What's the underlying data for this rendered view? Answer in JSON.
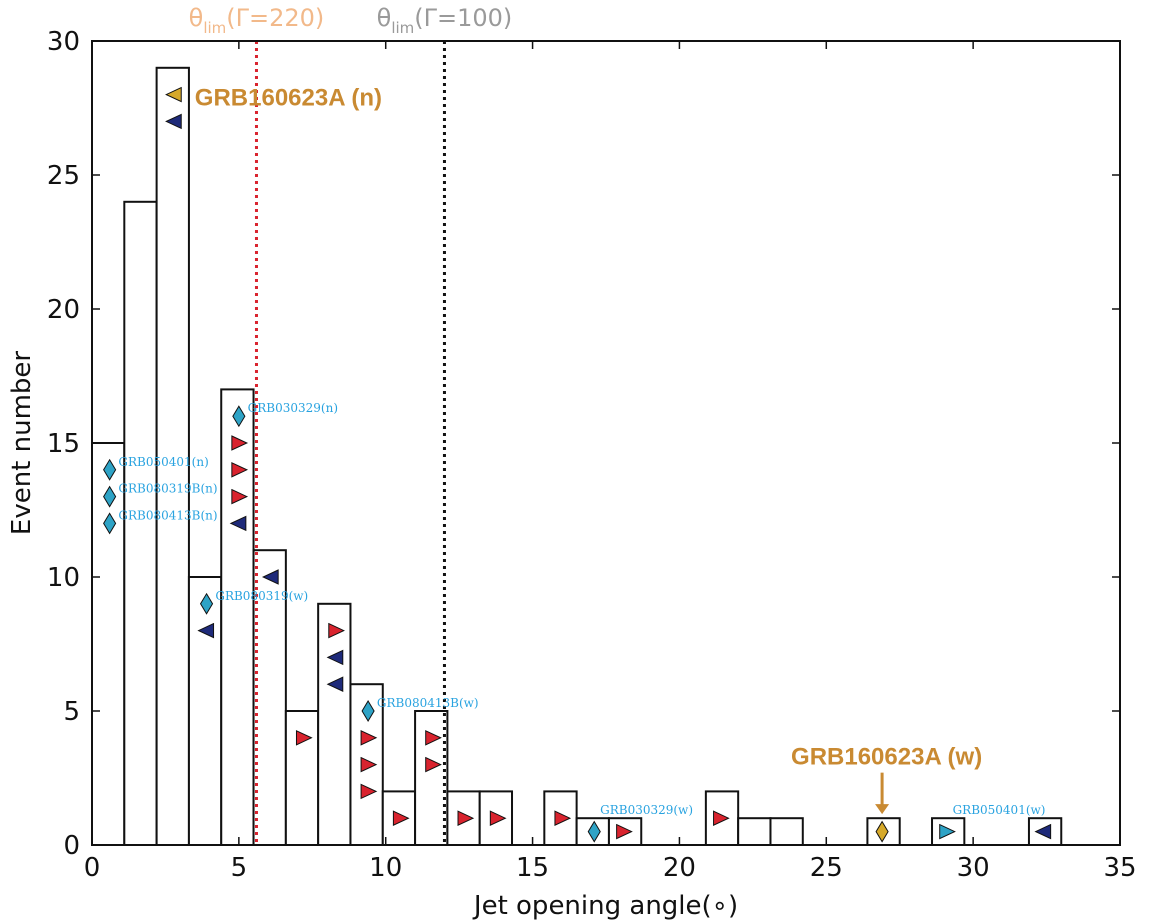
{
  "chart_data": {
    "type": "bar",
    "xlabel": "Jet opening angle(∘)",
    "ylabel": "Event number",
    "xlim": [
      0,
      35
    ],
    "ylim": [
      0,
      30
    ],
    "xticks": [
      0,
      5,
      10,
      15,
      20,
      25,
      30,
      35
    ],
    "yticks": [
      0,
      5,
      10,
      15,
      20,
      25,
      30
    ],
    "grid": false,
    "bins": [
      {
        "x0": 0.0,
        "x1": 1.1,
        "count": 15
      },
      {
        "x0": 1.1,
        "x1": 2.2,
        "count": 24
      },
      {
        "x0": 2.2,
        "x1": 3.3,
        "count": 29
      },
      {
        "x0": 3.3,
        "x1": 4.4,
        "count": 10
      },
      {
        "x0": 4.4,
        "x1": 5.5,
        "count": 17
      },
      {
        "x0": 5.5,
        "x1": 6.6,
        "count": 11
      },
      {
        "x0": 6.6,
        "x1": 7.7,
        "count": 5
      },
      {
        "x0": 7.7,
        "x1": 8.8,
        "count": 9
      },
      {
        "x0": 8.8,
        "x1": 9.9,
        "count": 6
      },
      {
        "x0": 9.9,
        "x1": 11.0,
        "count": 2
      },
      {
        "x0": 11.0,
        "x1": 12.1,
        "count": 5
      },
      {
        "x0": 12.1,
        "x1": 13.2,
        "count": 2
      },
      {
        "x0": 13.2,
        "x1": 14.3,
        "count": 2
      },
      {
        "x0": 15.4,
        "x1": 16.5,
        "count": 2
      },
      {
        "x0": 16.5,
        "x1": 17.6,
        "count": 1
      },
      {
        "x0": 17.6,
        "x1": 18.7,
        "count": 1
      },
      {
        "x0": 20.9,
        "x1": 22.0,
        "count": 2
      },
      {
        "x0": 22.0,
        "x1": 23.1,
        "count": 1
      },
      {
        "x0": 23.1,
        "x1": 24.2,
        "count": 1
      },
      {
        "x0": 26.4,
        "x1": 27.5,
        "count": 1
      },
      {
        "x0": 28.6,
        "x1": 29.7,
        "count": 1
      },
      {
        "x0": 31.9,
        "x1": 33.0,
        "count": 1
      }
    ],
    "vlines": [
      {
        "x": 5.6,
        "label_theta": "θ",
        "label_sub": "lim",
        "label_rest": "(Γ=220)",
        "color": "#d9232e",
        "label_color": "#f2b98a"
      },
      {
        "x": 12.0,
        "label_theta": "θ",
        "label_sub": "lim",
        "label_rest": "(Γ=100)",
        "color": "#111111",
        "label_color": "#9a9a9a"
      }
    ],
    "marker_colors": {
      "diamond_cyan": "#2ea3c6",
      "tri_right_red": "#d9232e",
      "tri_left_navy": "#1e2a7a",
      "diamond_gold": "#d6a92a",
      "tri_left_gold": "#d6a92a",
      "tri_right_cyan": "#2ea3c6"
    },
    "markers": [
      {
        "x": 0.6,
        "y": 14,
        "shape": "diamond_cyan"
      },
      {
        "x": 0.6,
        "y": 13,
        "shape": "diamond_cyan"
      },
      {
        "x": 0.6,
        "y": 12,
        "shape": "diamond_cyan"
      },
      {
        "x": 2.8,
        "y": 28,
        "shape": "tri_left_gold"
      },
      {
        "x": 2.8,
        "y": 27,
        "shape": "tri_left_navy"
      },
      {
        "x": 3.9,
        "y": 9,
        "shape": "diamond_cyan"
      },
      {
        "x": 3.9,
        "y": 8,
        "shape": "tri_left_navy"
      },
      {
        "x": 5.0,
        "y": 16,
        "shape": "diamond_cyan"
      },
      {
        "x": 5.0,
        "y": 15,
        "shape": "tri_right_red"
      },
      {
        "x": 5.0,
        "y": 14,
        "shape": "tri_right_red"
      },
      {
        "x": 5.0,
        "y": 13,
        "shape": "tri_right_red"
      },
      {
        "x": 5.0,
        "y": 12,
        "shape": "tri_left_navy"
      },
      {
        "x": 6.1,
        "y": 10,
        "shape": "tri_left_navy"
      },
      {
        "x": 7.2,
        "y": 4,
        "shape": "tri_right_red"
      },
      {
        "x": 8.3,
        "y": 8,
        "shape": "tri_right_red"
      },
      {
        "x": 8.3,
        "y": 7,
        "shape": "tri_left_navy"
      },
      {
        "x": 8.3,
        "y": 6,
        "shape": "tri_left_navy"
      },
      {
        "x": 9.4,
        "y": 5,
        "shape": "diamond_cyan"
      },
      {
        "x": 9.4,
        "y": 4,
        "shape": "tri_right_red"
      },
      {
        "x": 9.4,
        "y": 3,
        "shape": "tri_right_red"
      },
      {
        "x": 9.4,
        "y": 2,
        "shape": "tri_right_red"
      },
      {
        "x": 10.5,
        "y": 1,
        "shape": "tri_right_red"
      },
      {
        "x": 11.6,
        "y": 4,
        "shape": "tri_right_red"
      },
      {
        "x": 11.6,
        "y": 3,
        "shape": "tri_right_red"
      },
      {
        "x": 12.7,
        "y": 1,
        "shape": "tri_right_red"
      },
      {
        "x": 13.8,
        "y": 1,
        "shape": "tri_right_red"
      },
      {
        "x": 16.0,
        "y": 1,
        "shape": "tri_right_red"
      },
      {
        "x": 17.1,
        "y": 0.5,
        "shape": "diamond_cyan"
      },
      {
        "x": 18.1,
        "y": 0.5,
        "shape": "tri_right_red"
      },
      {
        "x": 21.4,
        "y": 1,
        "shape": "tri_right_red"
      },
      {
        "x": 26.9,
        "y": 0.5,
        "shape": "diamond_gold"
      },
      {
        "x": 29.1,
        "y": 0.5,
        "shape": "tri_right_cyan"
      },
      {
        "x": 32.4,
        "y": 0.5,
        "shape": "tri_left_navy"
      }
    ],
    "annotations": [
      {
        "text": "GRB050401(n)",
        "x": 0.9,
        "y": 14.3,
        "style": "small"
      },
      {
        "text": "GRB080319B(n)",
        "x": 0.9,
        "y": 13.3,
        "style": "small"
      },
      {
        "text": "GRB080413B(n)",
        "x": 0.9,
        "y": 12.3,
        "style": "small"
      },
      {
        "text": "GRB030329(n)",
        "x": 5.3,
        "y": 16.3,
        "style": "small"
      },
      {
        "text": "GRB080319(w)",
        "x": 4.2,
        "y": 9.3,
        "style": "small"
      },
      {
        "text": "GRB080413B(w)",
        "x": 9.7,
        "y": 5.3,
        "style": "small"
      },
      {
        "text": "GRB030329(w)",
        "x": 17.3,
        "y": 1.3,
        "style": "small"
      },
      {
        "text": "GRB050401(w)",
        "x": 29.3,
        "y": 1.3,
        "style": "small"
      },
      {
        "text": "GRB160623A (n)",
        "x": 3.5,
        "y": 27.9,
        "style": "big"
      },
      {
        "text": "GRB160623A (w)",
        "x": 23.8,
        "y": 3.3,
        "style": "big"
      }
    ],
    "arrow": {
      "x": 26.9,
      "y_from": 2.7,
      "y_to": 1.15,
      "color": "#c98a32"
    }
  }
}
